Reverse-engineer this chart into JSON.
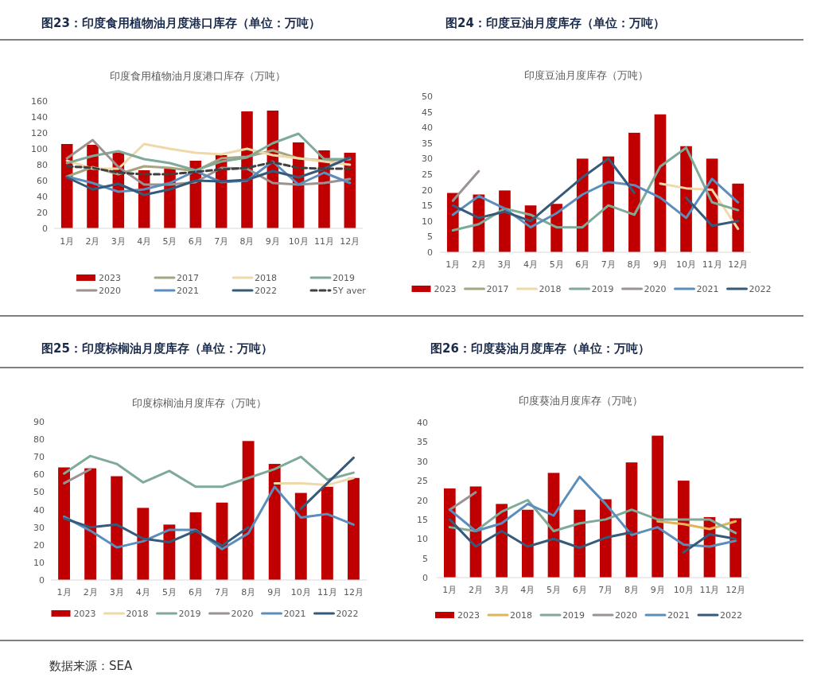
{
  "chart_data": [
    {
      "type": "bar",
      "title": "图23：印度食用植物油月度港口库存（单位：万吨）",
      "subtitle": "印度食用植物油月度港口库存（万吨）",
      "categories": [
        "1月",
        "2月",
        "3月",
        "4月",
        "5月",
        "6月",
        "7月",
        "8月",
        "9月",
        "10月",
        "11月",
        "12月"
      ],
      "ylim": [
        0,
        160
      ],
      "yticks": [
        0,
        20,
        40,
        60,
        80,
        100,
        120,
        140,
        160
      ],
      "legend": "bottom",
      "series": [
        {
          "name": "2023",
          "color": "#c00000",
          "values": [
            106,
            105,
            95,
            73,
            75,
            85,
            92,
            147,
            148,
            108,
            98,
            95
          ]
        },
        {
          "name": "2017",
          "type": "line",
          "color": "#a5a582",
          "values": [
            65,
            77,
            68,
            78,
            76,
            72,
            88,
            90,
            98,
            88,
            85,
            87
          ]
        },
        {
          "name": "2018",
          "type": "line",
          "color": "#f0d9a8",
          "values": [
            85,
            75,
            75,
            106,
            100,
            95,
            93,
            100,
            92,
            88,
            84,
            80
          ]
        },
        {
          "name": "2019",
          "type": "line",
          "color": "#7faa98",
          "values": [
            82,
            91,
            97,
            87,
            82,
            73,
            84,
            89,
            107,
            119,
            87,
            87
          ]
        },
        {
          "name": "2020",
          "type": "line",
          "color": "#9c9292",
          "values": [
            88,
            111,
            77,
            55,
            55,
            58,
            76,
            75,
            57,
            55,
            57,
            62
          ]
        },
        {
          "name": "2021",
          "type": "line",
          "color": "#5b8dbd",
          "values": [
            65,
            57,
            46,
            49,
            57,
            72,
            58,
            60,
            84,
            55,
            70,
            57
          ]
        },
        {
          "name": "2022",
          "type": "line",
          "color": "#365a7a",
          "values": [
            64,
            49,
            56,
            42,
            49,
            60,
            59,
            61,
            72,
            64,
            75,
            89
          ]
        },
        {
          "name": "5Y aver",
          "type": "line",
          "color": "#404040",
          "line_style": "dashed",
          "values": [
            78,
            76,
            70,
            68,
            68,
            71,
            74,
            76,
            83,
            76,
            75,
            75
          ]
        }
      ]
    },
    {
      "type": "bar",
      "title": "图24：印度豆油月度库存（单位：万吨）",
      "subtitle": "印度豆油月度库存（万吨）",
      "categories": [
        "1月",
        "2月",
        "3月",
        "4月",
        "5月",
        "6月",
        "7月",
        "8月",
        "9月",
        "10月",
        "11月",
        "12月"
      ],
      "ylim": [
        0,
        50
      ],
      "yticks": [
        0,
        5,
        10,
        15,
        20,
        25,
        30,
        35,
        40,
        45,
        50
      ],
      "legend": "bottom",
      "series": [
        {
          "name": "2023",
          "color": "#c00000",
          "values": [
            19,
            18.5,
            19.8,
            15,
            15.5,
            30,
            30.7,
            38.3,
            44.2,
            34,
            30,
            22
          ]
        },
        {
          "name": "2017",
          "type": "line",
          "color": "#a5a582",
          "values": [
            null,
            null,
            null,
            null,
            null,
            null,
            null,
            null,
            null,
            null,
            null,
            null
          ]
        },
        {
          "name": "2018",
          "type": "line",
          "color": "#f0d9a8",
          "values": [
            null,
            null,
            null,
            null,
            null,
            null,
            null,
            null,
            22,
            20.5,
            20,
            7.5
          ]
        },
        {
          "name": "2019",
          "type": "line",
          "color": "#7faa98",
          "values": [
            7,
            9,
            14,
            12,
            8,
            8,
            15,
            12,
            27.5,
            33.5,
            16,
            13.5
          ]
        },
        {
          "name": "2020",
          "type": "line",
          "color": "#9c9292",
          "values": [
            16.5,
            26,
            null,
            null,
            null,
            null,
            null,
            null,
            null,
            null,
            null,
            null
          ]
        },
        {
          "name": "2021",
          "type": "line",
          "color": "#5b8dbd",
          "values": [
            12,
            18,
            14,
            8,
            12.5,
            18.5,
            22.5,
            21.5,
            17.5,
            11,
            23.5,
            16
          ]
        },
        {
          "name": "2022",
          "type": "line",
          "color": "#365a7a",
          "values": [
            15,
            11,
            13,
            10,
            17,
            24,
            30,
            19,
            null,
            17.5,
            8.5,
            10
          ]
        }
      ]
    },
    {
      "type": "bar",
      "title": "图25：印度棕榈油月度库存（单位：万吨）",
      "subtitle": "印度棕榈油月度库存（万吨）",
      "categories": [
        "1月",
        "2月",
        "3月",
        "4月",
        "5月",
        "6月",
        "7月",
        "8月",
        "9月",
        "10月",
        "11月",
        "12月"
      ],
      "ylim": [
        0,
        90
      ],
      "yticks": [
        0,
        10,
        20,
        30,
        40,
        50,
        60,
        70,
        80,
        90
      ],
      "legend": "bottom",
      "series": [
        {
          "name": "2023",
          "color": "#c00000",
          "values": [
            64,
            63.5,
            59,
            41,
            31.5,
            38.5,
            44,
            79,
            66,
            49.5,
            53,
            58
          ]
        },
        {
          "name": "2018",
          "type": "line",
          "color": "#f0d9a8",
          "values": [
            null,
            null,
            null,
            null,
            null,
            null,
            null,
            null,
            55,
            55,
            54,
            58
          ]
        },
        {
          "name": "2019",
          "type": "line",
          "color": "#7faa98",
          "values": [
            60.5,
            70.5,
            66,
            55.5,
            62,
            53,
            53,
            58,
            63,
            70,
            57,
            61
          ]
        },
        {
          "name": "2020",
          "type": "line",
          "color": "#9c9292",
          "values": [
            55,
            63,
            null,
            null,
            null,
            null,
            null,
            null,
            null,
            null,
            null,
            null
          ]
        },
        {
          "name": "2021",
          "type": "line",
          "color": "#5b8dbd",
          "values": [
            36,
            28,
            18.5,
            22,
            28.5,
            28.5,
            17.5,
            26.5,
            53,
            35.5,
            37.5,
            31.5
          ]
        },
        {
          "name": "2022",
          "type": "line",
          "color": "#365a7a",
          "values": [
            35,
            30,
            31.5,
            23.5,
            21.5,
            28,
            19.5,
            30,
            null,
            40.5,
            55,
            69.5
          ]
        }
      ]
    },
    {
      "type": "bar",
      "title": "图26：印度葵油月度库存（单位：万吨）",
      "subtitle": "印度葵油月度库存（万吨）",
      "categories": [
        "1月",
        "2月",
        "3月",
        "4月",
        "5月",
        "6月",
        "7月",
        "8月",
        "9月",
        "10月",
        "11月",
        "12月"
      ],
      "ylim": [
        0,
        40
      ],
      "yticks": [
        0,
        5,
        10,
        15,
        20,
        25,
        30,
        35,
        40
      ],
      "legend": "bottom",
      "annotations": [
        "数据来源：SEA"
      ],
      "series": [
        {
          "name": "2023",
          "color": "#c00000",
          "values": [
            23,
            23.5,
            19,
            17.5,
            27,
            17.5,
            20.2,
            29.7,
            36.6,
            25,
            15.6,
            15.3
          ]
        },
        {
          "name": "2018",
          "type": "line",
          "color": "#e0b45a",
          "values": [
            null,
            null,
            null,
            null,
            null,
            null,
            null,
            null,
            14.5,
            13.8,
            12.5,
            14.5
          ]
        },
        {
          "name": "2019",
          "type": "line",
          "color": "#7faa98",
          "values": [
            13,
            12,
            17,
            20,
            12,
            14,
            15,
            17.5,
            15,
            15,
            15,
            11.5
          ]
        },
        {
          "name": "2020",
          "type": "line",
          "color": "#9c9292",
          "values": [
            17.5,
            22,
            null,
            null,
            null,
            null,
            null,
            null,
            null,
            null,
            null,
            null
          ]
        },
        {
          "name": "2021",
          "type": "line",
          "color": "#5b8dbd",
          "values": [
            17.5,
            12,
            14,
            19,
            16,
            26,
            19,
            11,
            13,
            8.5,
            8,
            9.5
          ]
        },
        {
          "name": "2022",
          "type": "line",
          "color": "#365a7a",
          "values": [
            15,
            8,
            12,
            8,
            10,
            7.7,
            10.3,
            11.7,
            null,
            6.5,
            11.2,
            10
          ]
        }
      ]
    }
  ]
}
